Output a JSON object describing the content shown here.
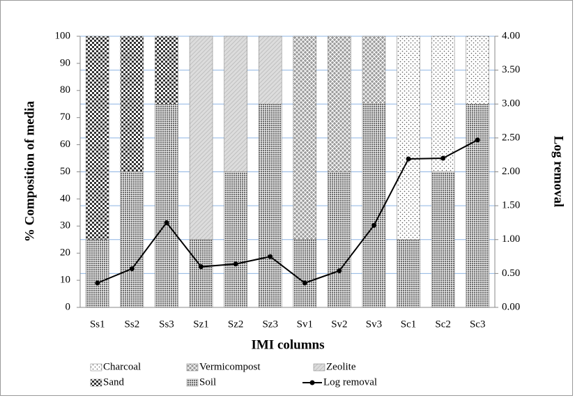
{
  "chart_data": {
    "type": "stacked-bar-line",
    "xlabel": "IMI columns",
    "ylabel": "% Composition of media",
    "y2label": "Log removal",
    "categories": [
      "Ss1",
      "Ss2",
      "Ss3",
      "Sz1",
      "Sz2",
      "Sz3",
      "Sv1",
      "Sv2",
      "Sv3",
      "Sc1",
      "Sc2",
      "Sc3"
    ],
    "series": [
      {
        "name": "Charcoal",
        "color": "#e8e8e8",
        "pattern": "dots",
        "values": [
          0,
          0,
          0,
          0,
          0,
          0,
          0,
          0,
          0,
          75,
          50,
          25
        ]
      },
      {
        "name": "Vermicompost",
        "color": "#9a9a9a",
        "pattern": "cross",
        "values": [
          0,
          0,
          0,
          0,
          0,
          0,
          75,
          50,
          25,
          0,
          0,
          0
        ]
      },
      {
        "name": "Zeolite",
        "color": "#dcdcdc",
        "pattern": "diagonal",
        "values": [
          0,
          0,
          0,
          75,
          50,
          25,
          0,
          0,
          0,
          0,
          0,
          0
        ]
      },
      {
        "name": "Sand",
        "color": "#333333",
        "pattern": "checker",
        "values": [
          75,
          50,
          25,
          0,
          0,
          0,
          0,
          0,
          0,
          0,
          0,
          0
        ]
      },
      {
        "name": "Soil",
        "color": "#6e6e6e",
        "pattern": "grid",
        "values": [
          25,
          50,
          75,
          25,
          50,
          75,
          25,
          50,
          75,
          25,
          50,
          75
        ]
      },
      {
        "name": "Log removal",
        "color": "#000000",
        "type": "line",
        "axis": "y2",
        "values": [
          0.36,
          0.57,
          1.25,
          0.6,
          0.64,
          0.75,
          0.36,
          0.54,
          1.21,
          2.19,
          2.2,
          2.47
        ]
      }
    ],
    "ylim": [
      0,
      100
    ],
    "yticks": [
      0,
      10,
      20,
      30,
      40,
      50,
      60,
      70,
      80,
      90,
      100
    ],
    "y2lim": [
      0,
      4
    ],
    "y2ticks": [
      {
        "value": 0,
        "label": "0.00"
      },
      {
        "value": 0.5,
        "label": "0.50"
      },
      {
        "value": 1,
        "label": "1.00"
      },
      {
        "value": 1.5,
        "label": "1.50"
      },
      {
        "value": 2,
        "label": "2.00"
      },
      {
        "value": 2.5,
        "label": "2.50"
      },
      {
        "value": 3,
        "label": "3.00"
      },
      {
        "value": 3.5,
        "label": "3.50"
      },
      {
        "value": 4,
        "label": "4.00"
      }
    ],
    "grid": true,
    "legend": "bottom"
  }
}
